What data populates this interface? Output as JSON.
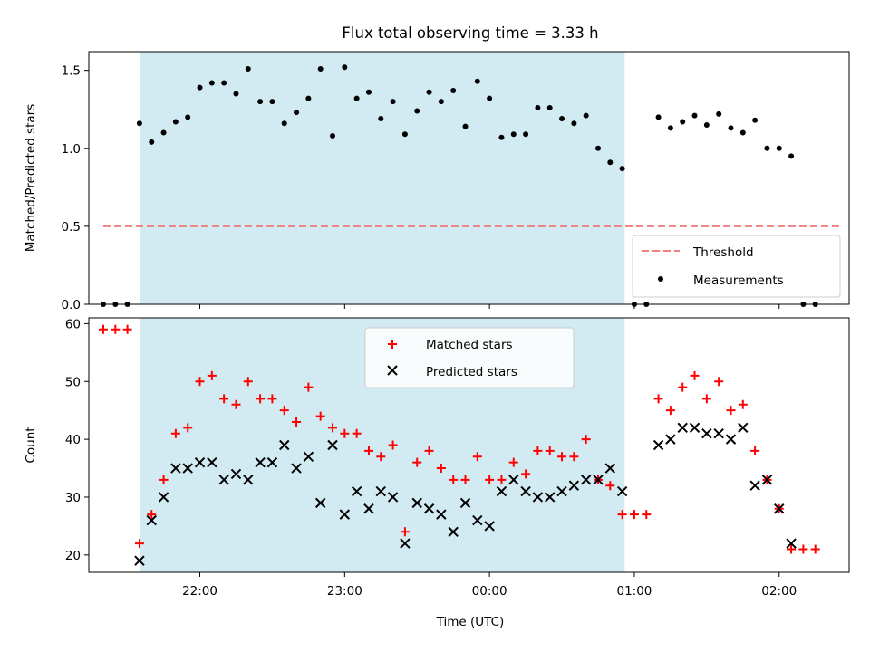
{
  "title": "Flux total observing time = 3.33 h",
  "chart_data": [
    {
      "type": "scatter",
      "panel": "top",
      "title": "Flux total observing time = 3.33 h",
      "xlabel": "",
      "ylabel": "Matched/Predicted stars",
      "x_ticks": [
        "22:00",
        "23:00",
        "00:00",
        "01:00",
        "02:00"
      ],
      "xlim": [
        "21:14",
        "02:29"
      ],
      "ylim": [
        0,
        1.62
      ],
      "y_ticks": [
        "0.0",
        "0.5",
        "1.0",
        "1.5"
      ],
      "grid": false,
      "legend_position": "lower-right",
      "shaded_interval": {
        "start": "21:35",
        "end": "00:56",
        "color": "#add8e6"
      },
      "threshold": {
        "name": "Threshold",
        "value": 0.5,
        "x_start": "21:20",
        "x_end": "02:25",
        "color": "#f08080",
        "style": "dashed"
      },
      "series": [
        {
          "name": "Measurements",
          "color": "#000000",
          "marker": "dot",
          "points": [
            [
              "21:20",
              0.0
            ],
            [
              "21:25",
              0.0
            ],
            [
              "21:30",
              0.0
            ],
            [
              "21:35",
              1.16
            ],
            [
              "21:40",
              1.04
            ],
            [
              "21:45",
              1.1
            ],
            [
              "21:50",
              1.17
            ],
            [
              "21:55",
              1.2
            ],
            [
              "22:00",
              1.39
            ],
            [
              "22:05",
              1.42
            ],
            [
              "22:10",
              1.42
            ],
            [
              "22:15",
              1.35
            ],
            [
              "22:20",
              1.51
            ],
            [
              "22:25",
              1.3
            ],
            [
              "22:30",
              1.3
            ],
            [
              "22:35",
              1.16
            ],
            [
              "22:40",
              1.23
            ],
            [
              "22:45",
              1.32
            ],
            [
              "22:50",
              1.51
            ],
            [
              "22:55",
              1.08
            ],
            [
              "23:00",
              1.52
            ],
            [
              "23:05",
              1.32
            ],
            [
              "23:10",
              1.36
            ],
            [
              "23:15",
              1.19
            ],
            [
              "23:20",
              1.3
            ],
            [
              "23:25",
              1.09
            ],
            [
              "23:30",
              1.24
            ],
            [
              "23:35",
              1.36
            ],
            [
              "23:40",
              1.3
            ],
            [
              "23:45",
              1.37
            ],
            [
              "23:50",
              1.14
            ],
            [
              "23:55",
              1.43
            ],
            [
              "00:00",
              1.32
            ],
            [
              "00:05",
              1.07
            ],
            [
              "00:10",
              1.09
            ],
            [
              "00:15",
              1.09
            ],
            [
              "00:20",
              1.26
            ],
            [
              "00:25",
              1.26
            ],
            [
              "00:30",
              1.19
            ],
            [
              "00:35",
              1.16
            ],
            [
              "00:40",
              1.21
            ],
            [
              "00:45",
              1.0
            ],
            [
              "00:50",
              0.91
            ],
            [
              "00:55",
              0.87
            ],
            [
              "01:00",
              0.0
            ],
            [
              "01:05",
              0.0
            ],
            [
              "01:10",
              1.2
            ],
            [
              "01:15",
              1.13
            ],
            [
              "01:20",
              1.17
            ],
            [
              "01:25",
              1.21
            ],
            [
              "01:30",
              1.15
            ],
            [
              "01:35",
              1.22
            ],
            [
              "01:40",
              1.13
            ],
            [
              "01:45",
              1.1
            ],
            [
              "01:50",
              1.18
            ],
            [
              "01:55",
              1.0
            ],
            [
              "02:00",
              1.0
            ],
            [
              "02:05",
              0.95
            ],
            [
              "02:10",
              0.0
            ],
            [
              "02:15",
              0.0
            ]
          ]
        }
      ]
    },
    {
      "type": "scatter",
      "panel": "bottom",
      "title": "",
      "xlabel": "Time (UTC)",
      "ylabel": "Count",
      "x_ticks": [
        "22:00",
        "23:00",
        "00:00",
        "01:00",
        "02:00"
      ],
      "xlim": [
        "21:14",
        "02:29"
      ],
      "ylim": [
        17,
        61
      ],
      "y_ticks": [
        "20",
        "30",
        "40",
        "50",
        "60"
      ],
      "grid": false,
      "legend_position": "top-center",
      "shaded_interval": {
        "start": "21:35",
        "end": "00:56",
        "color": "#add8e6"
      },
      "series": [
        {
          "name": "Matched stars",
          "color": "#ff0000",
          "marker": "plus",
          "points": [
            [
              "21:20",
              59
            ],
            [
              "21:25",
              59
            ],
            [
              "21:30",
              59
            ],
            [
              "21:35",
              22
            ],
            [
              "21:40",
              27
            ],
            [
              "21:45",
              33
            ],
            [
              "21:50",
              41
            ],
            [
              "21:55",
              42
            ],
            [
              "22:00",
              50
            ],
            [
              "22:05",
              51
            ],
            [
              "22:10",
              47
            ],
            [
              "22:15",
              46
            ],
            [
              "22:20",
              50
            ],
            [
              "22:25",
              47
            ],
            [
              "22:30",
              47
            ],
            [
              "22:35",
              45
            ],
            [
              "22:40",
              43
            ],
            [
              "22:45",
              49
            ],
            [
              "22:50",
              44
            ],
            [
              "22:55",
              42
            ],
            [
              "23:00",
              41
            ],
            [
              "23:05",
              41
            ],
            [
              "23:10",
              38
            ],
            [
              "23:15",
              37
            ],
            [
              "23:20",
              39
            ],
            [
              "23:25",
              24
            ],
            [
              "23:30",
              36
            ],
            [
              "23:35",
              38
            ],
            [
              "23:40",
              35
            ],
            [
              "23:45",
              33
            ],
            [
              "23:50",
              33
            ],
            [
              "23:55",
              37
            ],
            [
              "00:00",
              33
            ],
            [
              "00:05",
              33
            ],
            [
              "00:10",
              36
            ],
            [
              "00:15",
              34
            ],
            [
              "00:20",
              38
            ],
            [
              "00:25",
              38
            ],
            [
              "00:30",
              37
            ],
            [
              "00:35",
              37
            ],
            [
              "00:40",
              40
            ],
            [
              "00:45",
              33
            ],
            [
              "00:50",
              32
            ],
            [
              "00:55",
              27
            ],
            [
              "01:00",
              27
            ],
            [
              "01:05",
              27
            ],
            [
              "01:10",
              47
            ],
            [
              "01:15",
              45
            ],
            [
              "01:20",
              49
            ],
            [
              "01:25",
              51
            ],
            [
              "01:30",
              47
            ],
            [
              "01:35",
              50
            ],
            [
              "01:40",
              45
            ],
            [
              "01:45",
              46
            ],
            [
              "01:50",
              38
            ],
            [
              "01:55",
              33
            ],
            [
              "02:00",
              28
            ],
            [
              "02:05",
              21
            ],
            [
              "02:10",
              21
            ],
            [
              "02:15",
              21
            ]
          ]
        },
        {
          "name": "Predicted stars",
          "color": "#000000",
          "marker": "x",
          "points": [
            [
              "21:35",
              19
            ],
            [
              "21:40",
              26
            ],
            [
              "21:45",
              30
            ],
            [
              "21:50",
              35
            ],
            [
              "21:55",
              35
            ],
            [
              "22:00",
              36
            ],
            [
              "22:05",
              36
            ],
            [
              "22:10",
              33
            ],
            [
              "22:15",
              34
            ],
            [
              "22:20",
              33
            ],
            [
              "22:25",
              36
            ],
            [
              "22:30",
              36
            ],
            [
              "22:35",
              39
            ],
            [
              "22:40",
              35
            ],
            [
              "22:45",
              37
            ],
            [
              "22:50",
              29
            ],
            [
              "22:55",
              39
            ],
            [
              "23:00",
              27
            ],
            [
              "23:05",
              31
            ],
            [
              "23:10",
              28
            ],
            [
              "23:15",
              31
            ],
            [
              "23:20",
              30
            ],
            [
              "23:25",
              22
            ],
            [
              "23:30",
              29
            ],
            [
              "23:35",
              28
            ],
            [
              "23:40",
              27
            ],
            [
              "23:45",
              24
            ],
            [
              "23:50",
              29
            ],
            [
              "23:55",
              26
            ],
            [
              "00:00",
              25
            ],
            [
              "00:05",
              31
            ],
            [
              "00:10",
              33
            ],
            [
              "00:15",
              31
            ],
            [
              "00:20",
              30
            ],
            [
              "00:25",
              30
            ],
            [
              "00:30",
              31
            ],
            [
              "00:35",
              32
            ],
            [
              "00:40",
              33
            ],
            [
              "00:45",
              33
            ],
            [
              "00:50",
              35
            ],
            [
              "00:55",
              31
            ],
            [
              "01:10",
              39
            ],
            [
              "01:15",
              40
            ],
            [
              "01:20",
              42
            ],
            [
              "01:25",
              42
            ],
            [
              "01:30",
              41
            ],
            [
              "01:35",
              41
            ],
            [
              "01:40",
              40
            ],
            [
              "01:45",
              42
            ],
            [
              "01:50",
              32
            ],
            [
              "01:55",
              33
            ],
            [
              "02:00",
              28
            ],
            [
              "02:05",
              22
            ]
          ]
        }
      ]
    }
  ]
}
